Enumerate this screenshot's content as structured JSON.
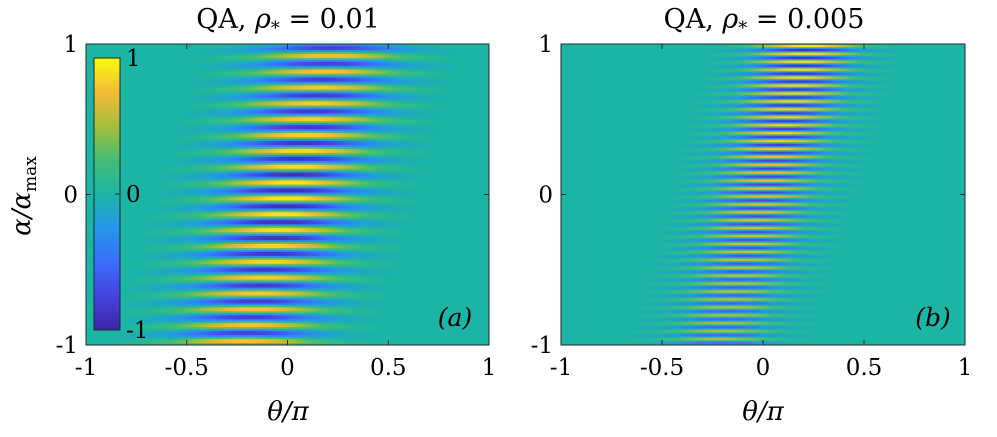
{
  "chart_data": [
    {
      "type": "heatmap",
      "title": "QA, ρ* = 0.01",
      "title_parts": {
        "prefix": "QA, ",
        "symbol": "ρ",
        "subscript": "*",
        "suffix": " = 0.01"
      },
      "xlabel": "θ/π",
      "ylabel": "α/αmax",
      "ylabel_parts": {
        "symbol": "α/α",
        "subscript": "max"
      },
      "xlim": [
        -1,
        1
      ],
      "ylim": [
        -1,
        1
      ],
      "xticks": [
        "-1",
        "-0.5",
        "0",
        "0.5",
        "1"
      ],
      "yticks": [
        "-1",
        "0",
        "1"
      ],
      "panel_label": "(a)",
      "field": {
        "rho": 0.01,
        "theta_center_at_alpha_min": -0.22,
        "theta_center_at_alpha_max": 0.22,
        "fringe_count": 19
      },
      "colorbar": {
        "min": -1,
        "max": 1,
        "ticks": [
          "-1",
          "0",
          "1"
        ],
        "colormap": "parula",
        "location": "inside-top-left"
      }
    },
    {
      "type": "heatmap",
      "title": "QA, ρ* = 0.005",
      "title_parts": {
        "prefix": "QA, ",
        "symbol": "ρ",
        "subscript": "*",
        "suffix": " = 0.005"
      },
      "xlabel": "θ/π",
      "ylabel": "",
      "xlim": [
        -1,
        1
      ],
      "ylim": [
        -1,
        1
      ],
      "xticks": [
        "-1",
        "-0.5",
        "0",
        "0.5",
        "1"
      ],
      "yticks": [
        "-1",
        "0",
        "1"
      ],
      "panel_label": "(b)",
      "field": {
        "rho": 0.005,
        "theta_center_at_alpha_min": -0.22,
        "theta_center_at_alpha_max": 0.22,
        "fringe_count": 38
      }
    }
  ],
  "colors": {
    "background_zero": "#1bb5a6",
    "positive_max": "#f9fb0e",
    "negative_max": "#3d26a8"
  }
}
